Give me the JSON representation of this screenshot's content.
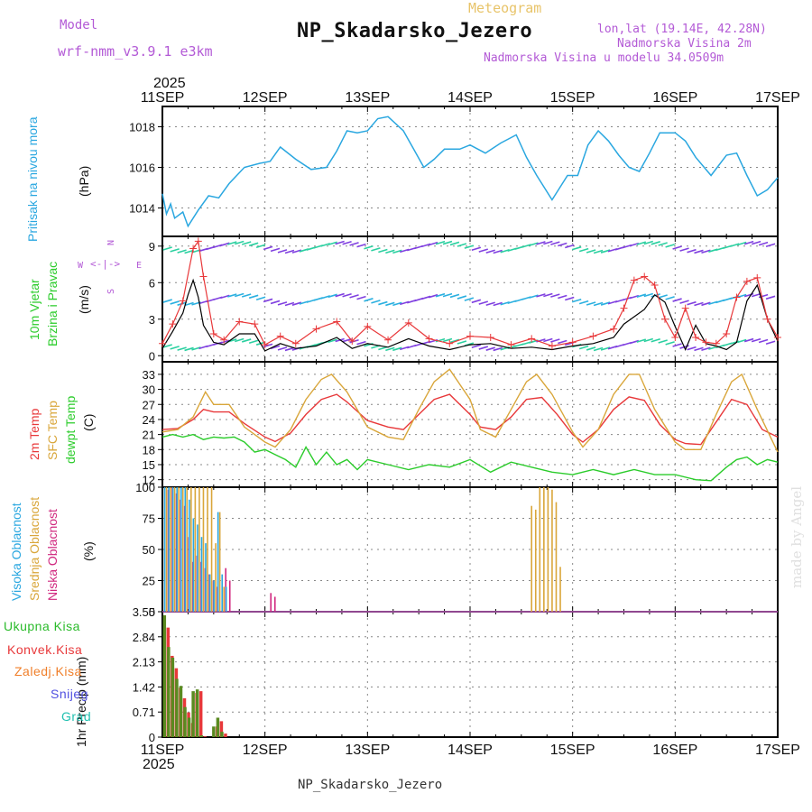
{
  "header": {
    "model_label": "Model",
    "model_name": "wrf-nmm_v3.9.1 e3km",
    "product": "Meteogram",
    "station": "NP_Skadarsko_Jezero",
    "coords": "lon,lat (19.14E, 42.28N)",
    "elevation": "Nadmorska Visina 2m",
    "model_elevation": "Nadmorska Visina u modelu 34.0509m",
    "year_top": "2025",
    "year_bottom": "2025",
    "footer_station": "NP_Skadarsko_Jezero",
    "credit": "made by Angel"
  },
  "colors": {
    "pressure": "#2aa7e0",
    "wind_speed": "#000000",
    "wind_gust": "#e8383a",
    "temp2m": "#e8383a",
    "sfc_temp": "#d9a63a",
    "dewpoint": "#2bcc2b",
    "cloud_high": "#2aa7e0",
    "cloud_mid": "#d9a63a",
    "cloud_low": "#d0287f",
    "precip_total": "#2bbb2b",
    "precip_conv": "#e8383a",
    "precip_ice": "#f07f2a",
    "snow": "#5050e0",
    "hail": "#20c0b0"
  },
  "chart_data": {
    "type": "meteogram",
    "x_labels": [
      "11SEP",
      "12SEP",
      "13SEP",
      "14SEP",
      "15SEP",
      "16SEP",
      "17SEP"
    ],
    "x_range_days": [
      0,
      6
    ],
    "panels": [
      {
        "name": "pressure",
        "type": "line",
        "ylabel_left": "Pritisak na nivou mora",
        "unit": "(hPa)",
        "ylim": [
          1012.6,
          1019.0
        ],
        "yticks": [
          1014,
          1016,
          1018
        ],
        "x": [
          0,
          0.04,
          0.08,
          0.12,
          0.2,
          0.25,
          0.35,
          0.45,
          0.55,
          0.65,
          0.8,
          0.95,
          1.05,
          1.15,
          1.3,
          1.45,
          1.6,
          1.7,
          1.8,
          1.9,
          2.0,
          2.1,
          2.2,
          2.35,
          2.45,
          2.55,
          2.65,
          2.75,
          2.9,
          3.0,
          3.15,
          3.3,
          3.45,
          3.55,
          3.65,
          3.8,
          3.95,
          4.05,
          4.15,
          4.25,
          4.35,
          4.45,
          4.55,
          4.65,
          4.75,
          4.85,
          5.0,
          5.1,
          5.2,
          5.35,
          5.5,
          5.6,
          5.7,
          5.8,
          5.9,
          6.0
        ],
        "values": [
          1014.7,
          1013.7,
          1014.2,
          1013.5,
          1013.8,
          1013.1,
          1013.9,
          1014.6,
          1014.5,
          1015.2,
          1016.0,
          1016.2,
          1016.3,
          1017.0,
          1016.4,
          1015.9,
          1016.0,
          1016.8,
          1017.8,
          1017.7,
          1017.8,
          1018.4,
          1018.5,
          1017.8,
          1016.9,
          1016.0,
          1016.4,
          1016.9,
          1016.9,
          1017.1,
          1016.7,
          1017.2,
          1017.6,
          1016.5,
          1015.6,
          1014.4,
          1015.6,
          1015.6,
          1017.1,
          1017.8,
          1017.3,
          1016.6,
          1016.0,
          1015.8,
          1016.7,
          1017.7,
          1017.7,
          1017.3,
          1016.5,
          1015.6,
          1016.6,
          1016.7,
          1015.6,
          1014.6,
          1014.9,
          1015.5
        ]
      },
      {
        "name": "wind",
        "type": "line",
        "ylabel_left": "10m Vjetar",
        "ylabel_left2": "Brzina i Pravac",
        "unit": "(m/s)",
        "compass": [
          "N",
          "S",
          "W",
          "E"
        ],
        "ylim": [
          -0.5,
          9.8
        ],
        "yticks": [
          0,
          3,
          6,
          9
        ],
        "x": [
          0,
          0.1,
          0.2,
          0.25,
          0.3,
          0.35,
          0.4,
          0.5,
          0.6,
          0.75,
          0.9,
          1.0,
          1.15,
          1.3,
          1.5,
          1.7,
          1.85,
          2.0,
          2.2,
          2.4,
          2.6,
          2.8,
          3.0,
          3.2,
          3.4,
          3.6,
          3.8,
          4.0,
          4.2,
          4.4,
          4.5,
          4.7,
          4.8,
          4.9,
          5.0,
          5.1,
          5.2,
          5.3,
          5.4,
          5.5,
          5.6,
          5.7,
          5.8,
          5.9,
          6.0
        ],
        "values": [
          0.6,
          2.0,
          3.5,
          5.0,
          6.2,
          4.8,
          2.5,
          1.1,
          0.9,
          1.8,
          1.8,
          0.4,
          1.0,
          0.6,
          0.8,
          1.5,
          0.6,
          1.0,
          0.7,
          1.4,
          0.8,
          0.5,
          0.9,
          1.0,
          0.6,
          0.7,
          0.5,
          0.8,
          1.0,
          1.5,
          2.6,
          3.8,
          5.0,
          4.4,
          2.4,
          0.5,
          2.5,
          1.0,
          0.8,
          0.5,
          1.1,
          4.5,
          5.8,
          3.0,
          1.2
        ],
        "gust_x": [
          0,
          0.1,
          0.2,
          0.3,
          0.35,
          0.4,
          0.5,
          0.6,
          0.75,
          0.9,
          1.0,
          1.15,
          1.3,
          1.5,
          1.7,
          1.85,
          2.0,
          2.2,
          2.4,
          2.6,
          2.8,
          3.0,
          3.2,
          3.4,
          3.6,
          3.8,
          4.0,
          4.2,
          4.4,
          4.5,
          4.6,
          4.7,
          4.8,
          4.9,
          5.0,
          5.1,
          5.2,
          5.3,
          5.4,
          5.5,
          5.6,
          5.7,
          5.8,
          5.9,
          6.0
        ],
        "gust_values": [
          1.0,
          2.6,
          4.5,
          8.8,
          9.4,
          6.5,
          1.8,
          1.3,
          2.8,
          2.6,
          0.9,
          1.6,
          1.0,
          2.2,
          2.8,
          1.2,
          2.4,
          1.3,
          2.7,
          1.4,
          1.0,
          1.6,
          1.5,
          0.9,
          1.4,
          0.8,
          1.1,
          1.6,
          2.2,
          3.9,
          6.2,
          6.5,
          5.8,
          3.0,
          1.5,
          3.9,
          1.5,
          1.1,
          1.0,
          1.8,
          4.8,
          6.1,
          6.4,
          3.0,
          1.5
        ]
      },
      {
        "name": "temperature",
        "type": "line",
        "ylabel_left": "2m Temp",
        "ylabel_left2": "SFC Temp",
        "ylabel_left3": "dewpt Temp",
        "unit": "(C)",
        "ylim": [
          10.5,
          35.5
        ],
        "yticks": [
          12,
          15,
          18,
          21,
          24,
          27,
          30,
          33
        ],
        "series": [
          {
            "name": "2m Temp",
            "x": [
              0,
              0.15,
              0.3,
              0.4,
              0.5,
              0.65,
              0.8,
              1.0,
              1.1,
              1.25,
              1.4,
              1.55,
              1.7,
              1.8,
              2.0,
              2.2,
              2.35,
              2.5,
              2.65,
              2.8,
              3.0,
              3.1,
              3.25,
              3.4,
              3.55,
              3.7,
              3.85,
              4.0,
              4.1,
              4.25,
              4.4,
              4.55,
              4.7,
              4.85,
              5.0,
              5.1,
              5.25,
              5.4,
              5.55,
              5.7,
              5.85,
              6.0
            ],
            "values": [
              22.0,
              22.2,
              24.0,
              26.0,
              25.5,
              25.5,
              23.2,
              20.5,
              19.6,
              21.3,
              25.0,
              28.0,
              29.0,
              27.5,
              23.8,
              22.5,
              22.0,
              25.0,
              28.0,
              29.0,
              25.0,
              22.5,
              22.0,
              24.5,
              28.0,
              28.4,
              25.0,
              21.0,
              19.5,
              22.0,
              26.0,
              28.5,
              27.8,
              23.0,
              20.0,
              19.2,
              19.0,
              23.5,
              28.0,
              27.0,
              22.0,
              20.5
            ]
          },
          {
            "name": "SFC Temp",
            "x": [
              0,
              0.15,
              0.3,
              0.42,
              0.5,
              0.65,
              0.8,
              1.0,
              1.1,
              1.25,
              1.4,
              1.55,
              1.65,
              1.8,
              2.0,
              2.2,
              2.35,
              2.5,
              2.65,
              2.8,
              3.0,
              3.1,
              3.25,
              3.4,
              3.55,
              3.65,
              3.8,
              4.0,
              4.1,
              4.25,
              4.4,
              4.55,
              4.65,
              4.8,
              5.0,
              5.1,
              5.25,
              5.4,
              5.55,
              5.65,
              5.8,
              6.0
            ],
            "values": [
              21.5,
              22.0,
              24.5,
              29.5,
              27.0,
              27.0,
              22.5,
              19.5,
              18.5,
              22.0,
              28.0,
              32.0,
              33.0,
              29.5,
              22.5,
              20.5,
              20.0,
              26.0,
              31.5,
              34.0,
              28.0,
              22.0,
              20.5,
              26.0,
              31.5,
              33.0,
              29.0,
              21.5,
              18.5,
              22.0,
              29.0,
              33.0,
              33.0,
              26.0,
              19.5,
              18.0,
              18.0,
              25.0,
              31.5,
              33.0,
              26.0,
              17.5
            ]
          },
          {
            "name": "dewpt Temp",
            "x": [
              0,
              0.1,
              0.2,
              0.3,
              0.4,
              0.5,
              0.6,
              0.7,
              0.8,
              0.9,
              1.0,
              1.1,
              1.2,
              1.3,
              1.4,
              1.5,
              1.6,
              1.7,
              1.8,
              1.9,
              2.0,
              2.2,
              2.4,
              2.6,
              2.8,
              3.0,
              3.2,
              3.4,
              3.6,
              3.8,
              4.0,
              4.2,
              4.4,
              4.6,
              4.8,
              5.0,
              5.2,
              5.35,
              5.5,
              5.6,
              5.7,
              5.8,
              5.9,
              6.0
            ],
            "values": [
              20.5,
              21.0,
              20.5,
              21.0,
              20.0,
              20.5,
              20.3,
              20.5,
              19.5,
              17.5,
              18.0,
              17.0,
              16.0,
              14.5,
              18.5,
              15.0,
              17.5,
              15.0,
              16.0,
              14.0,
              16.0,
              15.0,
              14.0,
              15.0,
              14.5,
              16.0,
              13.5,
              15.5,
              14.5,
              13.5,
              13.0,
              14.0,
              13.0,
              14.0,
              13.0,
              13.0,
              12.0,
              11.8,
              14.5,
              16.0,
              16.5,
              15.0,
              16.0,
              15.5
            ]
          }
        ]
      },
      {
        "name": "cloud_cover",
        "type": "bar",
        "ylabel_left": "Visoka Oblacnost",
        "ylabel_left2": "Srednja Oblacnost",
        "ylabel_left3": "Niska Oblacnost",
        "unit": "(%)",
        "ylim": [
          0,
          100
        ],
        "yticks": [
          0,
          25,
          50,
          75,
          100
        ],
        "x": [
          0.04,
          0.08,
          0.12,
          0.16,
          0.2,
          0.24,
          0.28,
          0.32,
          0.36,
          0.4,
          0.44,
          0.48,
          0.52,
          0.56,
          0.6,
          0.64,
          1.04,
          1.08,
          3.6,
          3.64,
          3.68,
          3.72,
          3.76,
          3.8,
          3.84,
          3.88
        ],
        "series": [
          {
            "name": "Visoka Oblacnost",
            "values": [
              100,
              100,
              100,
              100,
              100,
              100,
              90,
              75,
              70,
              60,
              55,
              30,
              25,
              80,
              30,
              20,
              0,
              0,
              0,
              0,
              0,
              0,
              0,
              0,
              0,
              0
            ]
          },
          {
            "name": "Srednja Oblacnost",
            "values": [
              100,
              100,
              100,
              100,
              100,
              100,
              100,
              100,
              100,
              100,
              100,
              100,
              55,
              80,
              20,
              0,
              0,
              0,
              85,
              82,
              100,
              100,
              100,
              98,
              88,
              36
            ]
          },
          {
            "name": "Niska Oblacnost",
            "values": [
              98,
              100,
              95,
              90,
              85,
              60,
              40,
              45,
              40,
              35,
              30,
              25,
              20,
              0,
              35,
              25,
              15,
              12,
              0,
              0,
              0,
              0,
              0,
              0,
              0,
              0
            ]
          }
        ]
      },
      {
        "name": "precipitation",
        "type": "bar",
        "ylabel_left": "1hr Precip (mm)",
        "ylim": [
          0,
          3.55
        ],
        "yticks": [
          0,
          0.71,
          1.42,
          2.13,
          2.84,
          3.55
        ],
        "ytick_labels": [
          "0",
          "0.71",
          "1.42",
          "2.13",
          "2.84",
          "3.55"
        ],
        "legend": [
          "Ukupna Kisa",
          "Konvek.Kisa",
          "Zaledj.Kisa",
          "Snijeg",
          "Grad"
        ],
        "x": [
          0.04,
          0.08,
          0.12,
          0.16,
          0.2,
          0.24,
          0.28,
          0.32,
          0.36,
          0.4,
          0.44,
          0.48,
          0.52,
          0.56,
          0.6,
          0.64
        ],
        "series": [
          {
            "name": "Ukupna Kisa",
            "values": [
              3.45,
              2.55,
              2.25,
              1.65,
              1.45,
              0.85,
              0.55,
              1.3,
              1.35,
              0.05,
              0.0,
              0.0,
              0.3,
              0.55,
              0.15,
              0.0
            ]
          },
          {
            "name": "Konvek.Kisa",
            "values": [
              3.1,
              2.3,
              1.95,
              1.4,
              1.1,
              0.7,
              0.4,
              1.25,
              1.3,
              0.02,
              0.0,
              0.0,
              0.3,
              0.45,
              0.1,
              0.0
            ]
          }
        ]
      }
    ]
  }
}
